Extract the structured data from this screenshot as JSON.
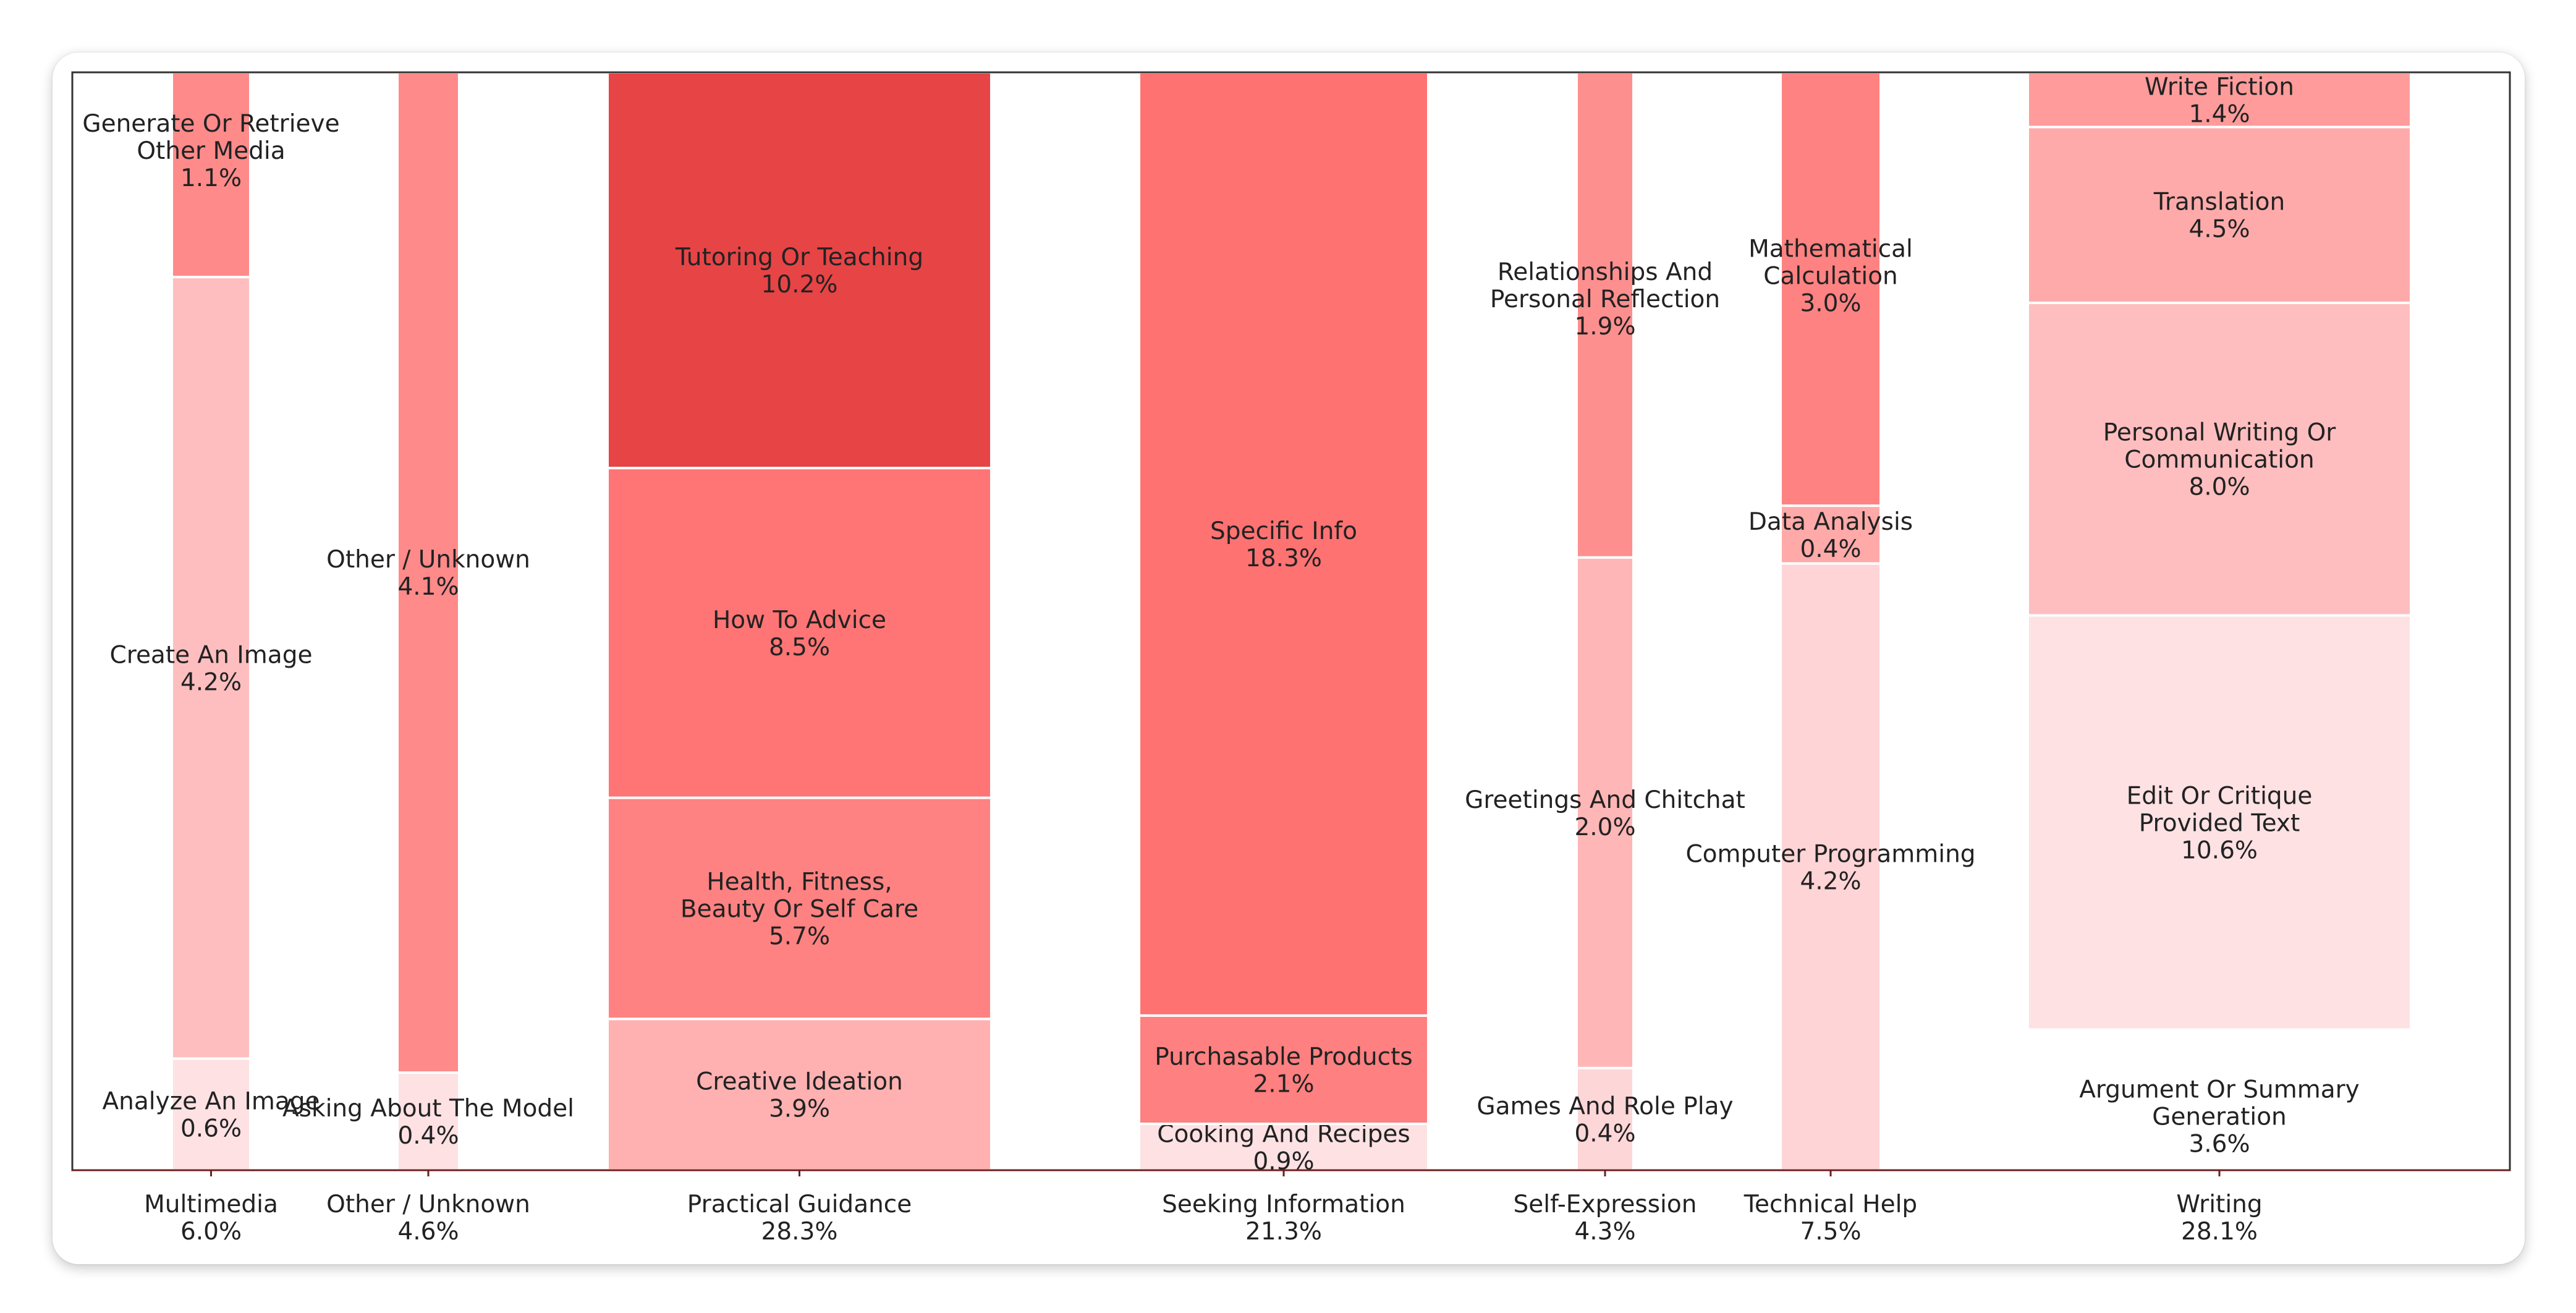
{
  "chart_data": {
    "type": "mosaic",
    "title": "",
    "xlabel": "",
    "ylabel": "",
    "ylim": [
      0,
      1
    ],
    "grid": false,
    "legend": "none",
    "colors": {
      "text": "#222222",
      "frame": "#333333",
      "axis": "#6b1f1f",
      "divider": "#ffffff",
      "card_background": "#ffffff",
      "page_background": "#ffffff"
    },
    "categories": [
      {
        "name": "Multimedia",
        "pct": "6.0%",
        "share": 0.06,
        "segments": [
          {
            "label": "Analyze An Image",
            "pct": "0.6%",
            "value": 0.6,
            "color": "#fde1e3"
          },
          {
            "label": "Create An Image",
            "pct": "4.2%",
            "value": 4.2,
            "color": "#febebf"
          },
          {
            "label": "Generate Or Retrieve Other Media",
            "pct": "1.1%",
            "value": 1.1,
            "color": "#fe8a8a"
          }
        ]
      },
      {
        "name": "Other / Unknown",
        "pct": "4.6%",
        "share": 0.046,
        "segments": [
          {
            "label": "Asking About The Model",
            "pct": "0.4%",
            "value": 0.4,
            "color": "#fde1e3"
          },
          {
            "label": "Other / Unknown",
            "pct": "4.1%",
            "value": 4.1,
            "color": "#fe8a8a"
          }
        ]
      },
      {
        "name": "Practical Guidance",
        "pct": "28.3%",
        "share": 0.283,
        "segments": [
          {
            "label": "Creative Ideation",
            "pct": "3.9%",
            "value": 3.9,
            "color": "#ffb1b1"
          },
          {
            "label": "Health, Fitness, Beauty Or Self Care",
            "pct": "5.7%",
            "value": 5.7,
            "color": "#fe8282"
          },
          {
            "label": "How To Advice",
            "pct": "8.5%",
            "value": 8.5,
            "color": "#ff7575"
          },
          {
            "label": "Tutoring Or Teaching",
            "pct": "10.2%",
            "value": 10.2,
            "color": "#e74446"
          }
        ]
      },
      {
        "name": "Seeking Information",
        "pct": "21.3%",
        "share": 0.213,
        "segments": [
          {
            "label": "Cooking And Recipes",
            "pct": "0.9%",
            "value": 0.9,
            "color": "#fde1e3"
          },
          {
            "label": "Purchasable Products",
            "pct": "2.1%",
            "value": 2.1,
            "color": "#ff8080"
          },
          {
            "label": "Specific Info",
            "pct": "18.3%",
            "value": 18.3,
            "color": "#ff7272"
          }
        ]
      },
      {
        "name": "Self-Expression",
        "pct": "4.3%",
        "share": 0.043,
        "segments": [
          {
            "label": "Games And Role Play",
            "pct": "0.4%",
            "value": 0.4,
            "color": "#fdd6d8"
          },
          {
            "label": "Greetings And Chitchat",
            "pct": "2.0%",
            "value": 2.0,
            "color": "#ffb6b7"
          },
          {
            "label": "Relationships And Personal Reflection",
            "pct": "1.9%",
            "value": 1.9,
            "color": "#fe8f8f"
          }
        ]
      },
      {
        "name": "Technical Help",
        "pct": "7.5%",
        "share": 0.075,
        "segments": [
          {
            "label": "Computer Programming",
            "pct": "4.2%",
            "value": 4.2,
            "color": "#fed4d6"
          },
          {
            "label": "Data Analysis",
            "pct": "0.4%",
            "value": 0.4,
            "color": "#ffa9a9"
          },
          {
            "label": "Mathematical Calculation",
            "pct": "3.0%",
            "value": 3.0,
            "color": "#ff8282"
          }
        ]
      },
      {
        "name": "Writing",
        "pct": "28.1%",
        "share": 0.281,
        "segments": [
          {
            "label": "Argument Or Summary Generation",
            "pct": "3.6%",
            "value": 3.6,
            "color": "#ffffff"
          },
          {
            "label": "Edit Or Critique Provided Text",
            "pct": "10.6%",
            "value": 10.6,
            "color": "#fde1e3"
          },
          {
            "label": "Personal Writing Or Communication",
            "pct": "8.0%",
            "value": 8.0,
            "color": "#febebf"
          },
          {
            "label": "Translation",
            "pct": "4.5%",
            "value": 4.5,
            "color": "#ffaaaa"
          },
          {
            "label": "Write Fiction",
            "pct": "1.4%",
            "value": 1.4,
            "color": "#ff9b9b"
          }
        ]
      }
    ]
  }
}
